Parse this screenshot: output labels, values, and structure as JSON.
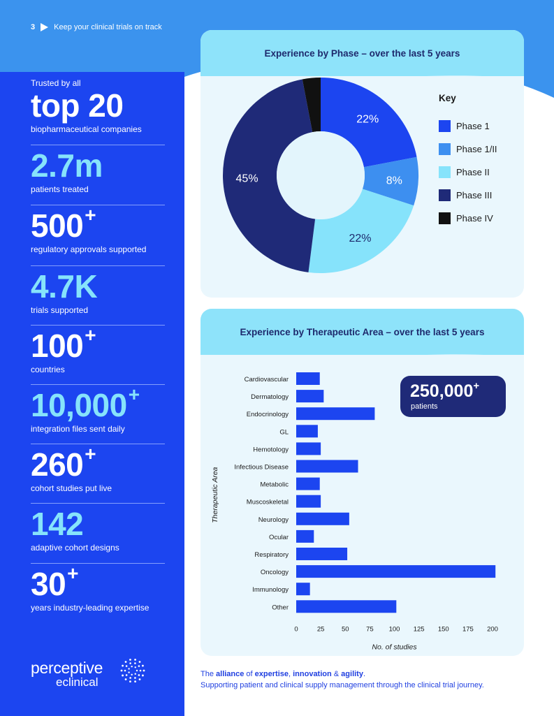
{
  "header": {
    "page_number": "3",
    "title": "Keep your clinical trials on track"
  },
  "stats": [
    {
      "prefix": "Trusted by all",
      "value": "top 20",
      "sup": "",
      "label": "biopharmaceutical companies",
      "color": "#ffffff"
    },
    {
      "prefix": "",
      "value": "2.7m",
      "sup": "",
      "label": "patients treated",
      "color": "#86e3fb"
    },
    {
      "prefix": "",
      "value": "500",
      "sup": "+",
      "label": "regulatory approvals supported",
      "color": "#ffffff"
    },
    {
      "prefix": "",
      "value": "4.7K",
      "sup": "",
      "label": "trials supported",
      "color": "#86e3fb"
    },
    {
      "prefix": "",
      "value": "100",
      "sup": "+",
      "label": "countries",
      "color": "#ffffff"
    },
    {
      "prefix": "",
      "value": "10,000",
      "sup": "+",
      "label": "integration files sent daily",
      "color": "#86e3fb"
    },
    {
      "prefix": "",
      "value": "260",
      "sup": "+",
      "label": "cohort studies put live",
      "color": "#ffffff"
    },
    {
      "prefix": "",
      "value": "142",
      "sup": "",
      "label": "adaptive cohort designs",
      "color": "#86e3fb"
    },
    {
      "prefix": "",
      "value": "30",
      "sup": "+",
      "label": "years industry-leading expertise",
      "color": "#ffffff"
    }
  ],
  "logo": {
    "line1": "perceptive",
    "line2": "eclinical"
  },
  "phase_card": {
    "title": "Experience by Phase – over the last 5 years",
    "key_title": "Key"
  },
  "area_card": {
    "title": "Experience by Therapeutic Area – over the last 5 years",
    "badge_value": "250,000",
    "badge_sup": "+",
    "badge_label": "patients"
  },
  "footer": {
    "line1_parts": [
      "The ",
      "alliance",
      " of ",
      "expertise",
      ", ",
      "innovation",
      " & ",
      "agility",
      "."
    ],
    "line2": "Supporting patient and clinical supply management through the clinical trial journey."
  },
  "chart_data": [
    {
      "type": "pie",
      "title": "Experience by Phase – over the last 5 years",
      "categories": [
        "Phase 1",
        "Phase 1/II",
        "Phase II",
        "Phase III",
        "Phase IV"
      ],
      "values": [
        22,
        8,
        22,
        45,
        3
      ],
      "labels": [
        "22%",
        "8%",
        "22%",
        "45%",
        ""
      ],
      "colors": [
        "#1c45f0",
        "#3d8ff0",
        "#86e3fb",
        "#1f2a78",
        "#111111"
      ],
      "legend": "right",
      "donut": true
    },
    {
      "type": "bar",
      "orientation": "horizontal",
      "title": "Experience by Therapeutic Area – over the last 5 years",
      "categories": [
        "Cardiovascular",
        "Dermatology",
        "Endocrinology",
        "GL",
        "Hemotology",
        "Infectious Disease",
        "Metabolic",
        "Muscoskeletal",
        "Neurology",
        "Ocular",
        "Respiratory",
        "Oncology",
        "Immunology",
        "Other"
      ],
      "values": [
        24,
        28,
        80,
        22,
        25,
        63,
        24,
        25,
        54,
        18,
        52,
        203,
        14,
        102
      ],
      "xlabel": "No. of studies",
      "ylabel": "Therapeutic Area",
      "xlim": [
        0,
        210
      ],
      "xticks": [
        0,
        25,
        50,
        75,
        100,
        125,
        150,
        175,
        200
      ],
      "color": "#1c45f0",
      "grid": false
    }
  ]
}
